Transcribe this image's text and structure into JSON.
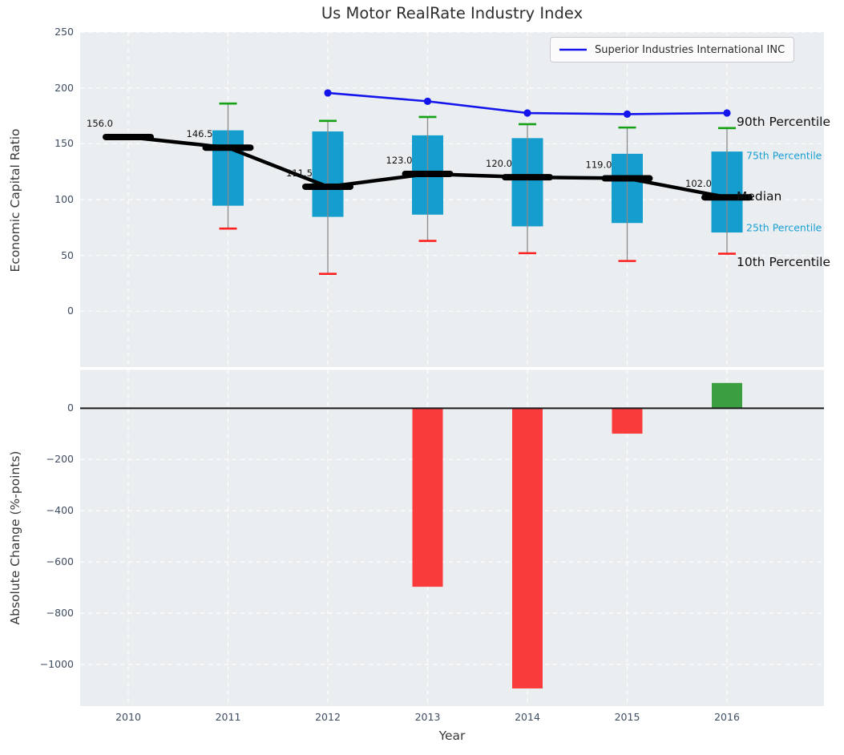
{
  "title": "Us Motor RealRate Industry Index",
  "legend": {
    "label": "Superior Industries International INC"
  },
  "annotations": {
    "p90": "90th Percentile",
    "p75": "75th Percentile",
    "median": "Median",
    "p25": "25th Percentile",
    "p10": "10th Percentile"
  },
  "colors": {
    "panel_bg": "#eaeef0",
    "grid": "#ffffff",
    "box_fill": "#149dcd",
    "median_line": "#000000",
    "company_line": "#1414ec",
    "cap_top": "#14a114",
    "cap_bottom": "#ff2020",
    "whisker": "#8a8a8a",
    "bar_negative": "#fa3b3b",
    "bar_positive": "#3b9e41",
    "zero_line": "#1a1a1a",
    "tick_text": "#3e4d61",
    "percentile_text": "#189fd4",
    "median_label_text": "#111111"
  },
  "chart_data": [
    {
      "type": "boxplot",
      "panel": "top",
      "title": "Us Motor RealRate Industry Index",
      "ylabel": "Economic Capital Ratio",
      "ylim": [
        -50,
        250
      ],
      "yticks": [
        250,
        200,
        150,
        100,
        50,
        0
      ],
      "grid": true,
      "legend_position": "upper right",
      "categories": [
        "2010",
        "2011",
        "2012",
        "2013",
        "2014",
        "2015",
        "2016"
      ],
      "median": {
        "values": [
          156.0,
          146.5,
          111.5,
          123.0,
          120.0,
          119.0,
          102.0
        ],
        "labels": [
          "156.0",
          "146.5",
          "111.5",
          "123.0",
          "120.0",
          "119.0",
          "102.0"
        ]
      },
      "q75": [
        null,
        162,
        161,
        157.5,
        155,
        141,
        143
      ],
      "q25": [
        null,
        94.5,
        84.5,
        86.5,
        76,
        79,
        70.5
      ],
      "p90": [
        null,
        186,
        170.5,
        174,
        167.5,
        164.5,
        164
      ],
      "p10": [
        null,
        74,
        33.5,
        63,
        52,
        45,
        51.5
      ],
      "series": [
        {
          "name": "Superior Industries International INC",
          "type": "line",
          "values": [
            null,
            null,
            195.5,
            188,
            177.5,
            176.5,
            177.5
          ]
        }
      ]
    },
    {
      "type": "bar",
      "panel": "bottom",
      "ylabel": "Absolute Change (%-points)",
      "xlabel": "Year",
      "ylim": [
        -1163,
        150
      ],
      "yticks": [
        0,
        -200,
        -400,
        -600,
        -800,
        -1000
      ],
      "grid": true,
      "categories": [
        "2010",
        "2011",
        "2012",
        "2013",
        "2014",
        "2015",
        "2016"
      ],
      "values": [
        null,
        null,
        null,
        -697,
        -1094,
        -99,
        99
      ]
    }
  ]
}
